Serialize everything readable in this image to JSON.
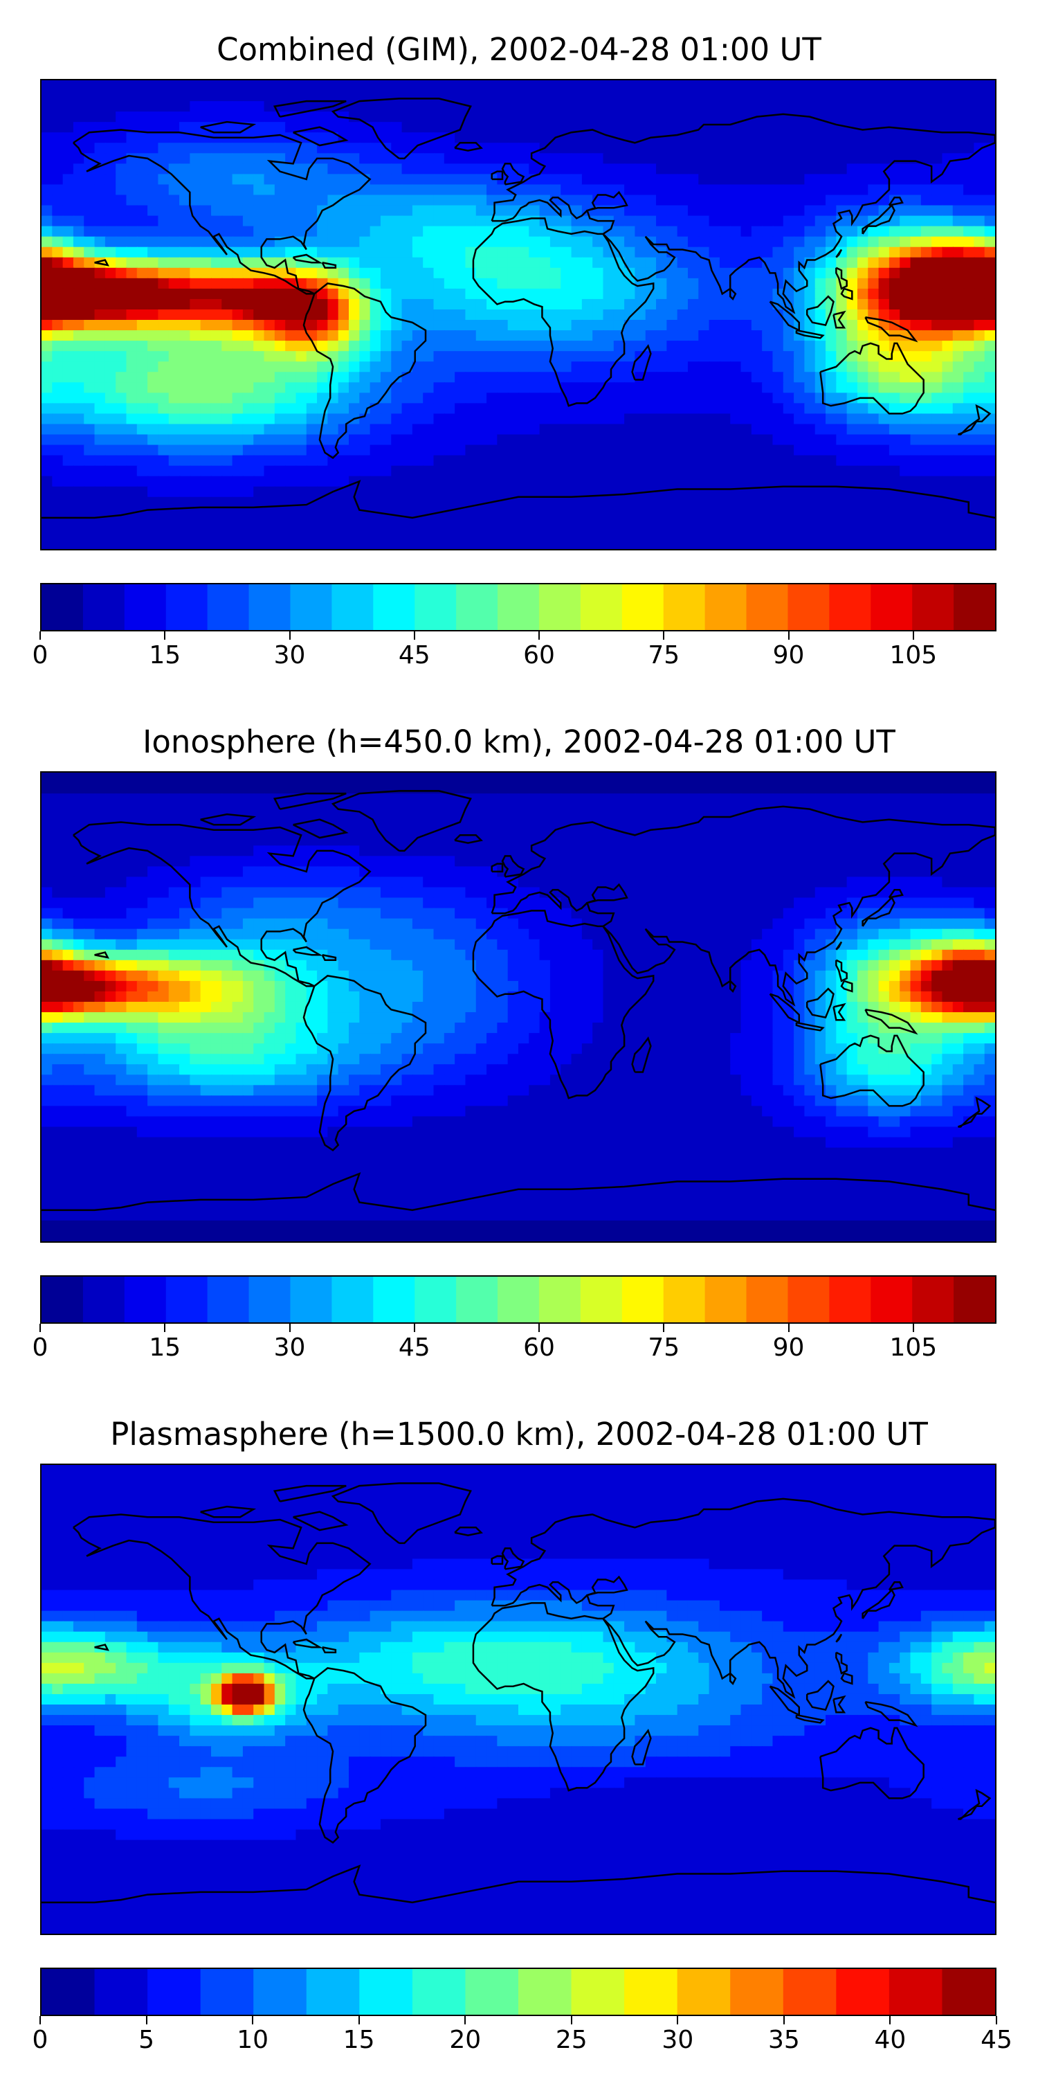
{
  "panels": [
    {
      "title": "Combined (GIM), 2002-04-28 01:00 UT",
      "scale_max": 115,
      "colorbar": {
        "vmin": 0,
        "vmax": 115,
        "levels": 23,
        "ticks": [
          "0",
          "15",
          "30",
          "45",
          "60",
          "75",
          "90",
          "105"
        ]
      },
      "field": {
        "base": 10,
        "blobs": [
          {
            "lon": -178,
            "lat": 8,
            "amp": 82,
            "slon": 28,
            "slat": 9
          },
          {
            "lon": -135,
            "lat": 8,
            "amp": 72,
            "slon": 26,
            "slat": 10
          },
          {
            "lon": -95,
            "lat": 6,
            "amp": 60,
            "slon": 18,
            "slat": 10
          },
          {
            "lon": -75,
            "lat": 0,
            "amp": 58,
            "slon": 14,
            "slat": 12
          },
          {
            "lon": -120,
            "lat": -28,
            "amp": 52,
            "slon": 45,
            "slat": 18
          },
          {
            "lon": 170,
            "lat": 14,
            "amp": 82,
            "slon": 18,
            "slat": 12
          },
          {
            "lon": 140,
            "lat": 12,
            "amp": 55,
            "slon": 22,
            "slat": 18
          },
          {
            "lon": 145,
            "lat": -22,
            "amp": 45,
            "slon": 25,
            "slat": 15
          },
          {
            "lon": 10,
            "lat": 10,
            "amp": 32,
            "slon": 45,
            "slat": 20
          },
          {
            "lon": -30,
            "lat": 35,
            "amp": 22,
            "slon": 40,
            "slat": 15
          },
          {
            "lon": -110,
            "lat": 55,
            "amp": 25,
            "slon": 40,
            "slat": 15
          }
        ]
      }
    },
    {
      "title": "Ionosphere  (h=450.0 km), 2002-04-28 01:00 UT",
      "scale_max": 115,
      "colorbar": {
        "vmin": 0,
        "vmax": 115,
        "levels": 23,
        "ticks": [
          "0",
          "15",
          "30",
          "45",
          "60",
          "75",
          "90",
          "105"
        ]
      },
      "field": {
        "base": 8,
        "blobs": [
          {
            "lon": -172,
            "lat": 8,
            "amp": 70,
            "slon": 25,
            "slat": 8
          },
          {
            "lon": -125,
            "lat": 8,
            "amp": 50,
            "slon": 35,
            "slat": 12
          },
          {
            "lon": -110,
            "lat": -18,
            "amp": 38,
            "slon": 40,
            "slat": 15
          },
          {
            "lon": 172,
            "lat": 12,
            "amp": 62,
            "slon": 15,
            "slat": 12
          },
          {
            "lon": 140,
            "lat": 10,
            "amp": 45,
            "slon": 22,
            "slat": 18
          },
          {
            "lon": 140,
            "lat": -25,
            "amp": 32,
            "slon": 25,
            "slat": 15
          },
          {
            "lon": -30,
            "lat": 10,
            "amp": 18,
            "slon": 30,
            "slat": 25
          },
          {
            "lon": -90,
            "lat": 35,
            "amp": 20,
            "slon": 35,
            "slat": 15
          }
        ]
      }
    },
    {
      "title": "Plasmasphere (h=1500.0 km), 2002-04-28 01:00 UT",
      "scale_max": 45,
      "colorbar": {
        "vmin": 0,
        "vmax": 45,
        "levels": 18,
        "ticks": [
          "0",
          "5",
          "10",
          "15",
          "20",
          "25",
          "30",
          "35",
          "40",
          "45"
        ]
      },
      "field": {
        "base": 5,
        "blobs": [
          {
            "lon": -103,
            "lat": 2,
            "amp": 38,
            "slon": 7,
            "slat": 5
          },
          {
            "lon": -110,
            "lat": 0,
            "amp": 12,
            "slon": 25,
            "slat": 12
          },
          {
            "lon": -165,
            "lat": 14,
            "amp": 12,
            "slon": 30,
            "slat": 10
          },
          {
            "lon": 175,
            "lat": 12,
            "amp": 10,
            "slon": 25,
            "slat": 12
          },
          {
            "lon": -20,
            "lat": 15,
            "amp": 10,
            "slon": 55,
            "slat": 15
          },
          {
            "lon": 30,
            "lat": 5,
            "amp": 7,
            "slon": 60,
            "slat": 25
          },
          {
            "lon": -120,
            "lat": -35,
            "amp": 6,
            "slon": 40,
            "slat": 10
          },
          {
            "lon": 60,
            "lat": -40,
            "amp": -3,
            "slon": 40,
            "slat": 10
          }
        ]
      }
    }
  ]
}
